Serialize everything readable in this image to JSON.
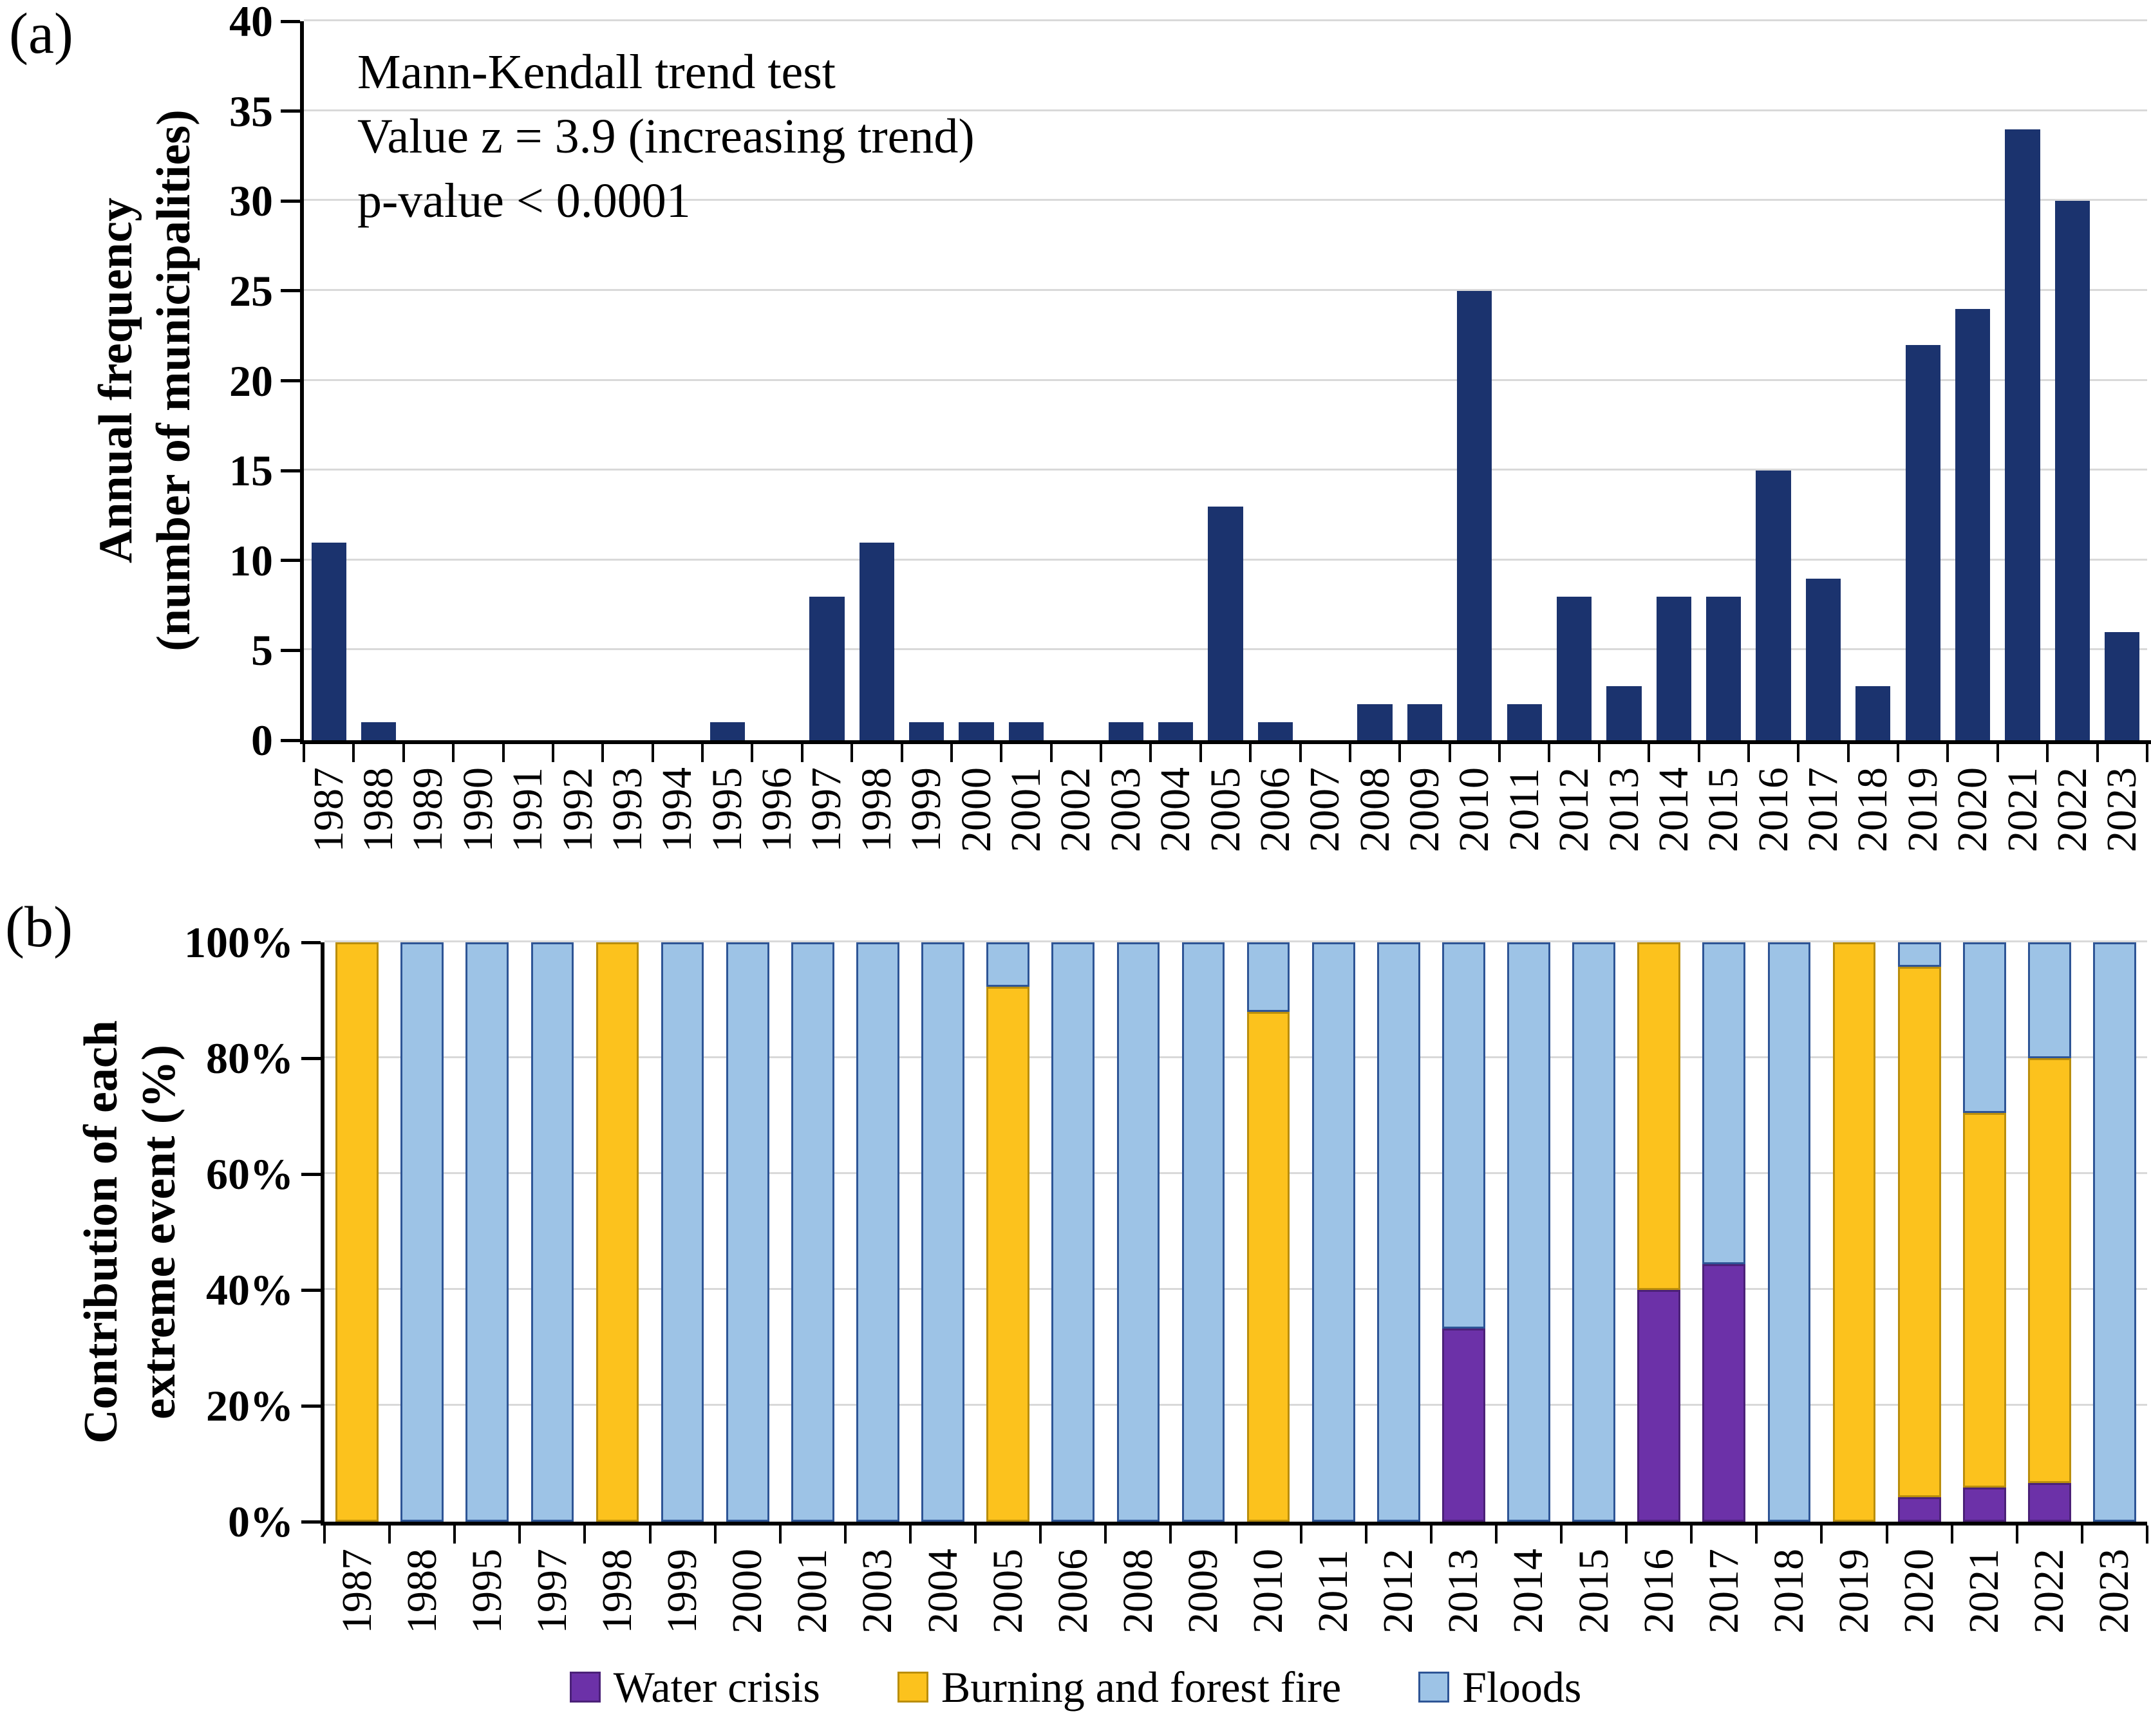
{
  "figure": {
    "panel_a_label": "(a)",
    "panel_b_label": "(b)",
    "annotation_lines": [
      "Mann-Kendall trend test",
      "Value z = 3.9 (increasing trend)",
      "p-value < 0.0001"
    ],
    "legend": [
      {
        "name": "water-crisis",
        "label": "Water crisis",
        "color": "#6C31A8",
        "border": "#4B2178"
      },
      {
        "name": "burning-and-forest-fire",
        "label": "Burning and forest fire",
        "color": "#FCC21D",
        "border": "#BA8E0C"
      },
      {
        "name": "floods",
        "label": "Floods",
        "color": "#9DC3E6",
        "border": "#2E5596"
      }
    ],
    "colors": {
      "annual_bar": "#1B336E",
      "gridline": "#D9D9D9",
      "axis": "#000000"
    }
  },
  "chart_data": [
    {
      "type": "bar",
      "panel": "a",
      "title": "",
      "xlabel": "",
      "ylabel_lines": [
        "Annual frequency",
        "(number of municipalities)"
      ],
      "ylim": [
        0,
        40
      ],
      "yticks": [
        0,
        5,
        10,
        15,
        20,
        25,
        30,
        35,
        40
      ],
      "grid": true,
      "legend_position": "none",
      "bar_color": "#1B336E",
      "annotation": "Mann-Kendall trend test; Value z = 3.9 (increasing trend); p-value < 0.0001",
      "categories": [
        "1987",
        "1988",
        "1989",
        "1990",
        "1991",
        "1992",
        "1993",
        "1994",
        "1995",
        "1996",
        "1997",
        "1998",
        "1999",
        "2000",
        "2001",
        "2002",
        "2003",
        "2004",
        "2005",
        "2006",
        "2007",
        "2008",
        "2009",
        "2010",
        "2011",
        "2012",
        "2013",
        "2014",
        "2015",
        "2016",
        "2017",
        "2018",
        "2019",
        "2020",
        "2021",
        "2022",
        "2023"
      ],
      "values": [
        11,
        1,
        0,
        0,
        0,
        0,
        0,
        0,
        1,
        0,
        8,
        11,
        1,
        1,
        1,
        0,
        1,
        1,
        13,
        1,
        0,
        2,
        2,
        25,
        2,
        8,
        3,
        8,
        8,
        15,
        9,
        3,
        22,
        24,
        34,
        30,
        6
      ]
    },
    {
      "type": "stacked-bar-percent",
      "panel": "b",
      "title": "",
      "xlabel": "",
      "ylabel_lines": [
        "Contribution of each",
        "extreme event (%)"
      ],
      "ylim": [
        0,
        100
      ],
      "yticks": [
        0,
        20,
        40,
        60,
        80,
        100
      ],
      "ytick_labels": [
        "0%",
        "20%",
        "40%",
        "60%",
        "80%",
        "100%"
      ],
      "grid": true,
      "legend_position": "bottom",
      "stack_order_bottom_to_top": [
        "Water crisis",
        "Burning and forest fire",
        "Floods"
      ],
      "categories": [
        "1987",
        "1988",
        "1995",
        "1997",
        "1998",
        "1999",
        "2000",
        "2001",
        "2003",
        "2004",
        "2005",
        "2006",
        "2008",
        "2009",
        "2010",
        "2011",
        "2012",
        "2013",
        "2014",
        "2015",
        "2016",
        "2017",
        "2018",
        "2019",
        "2020",
        "2021",
        "2022",
        "2023"
      ],
      "series": [
        {
          "name": "Water crisis",
          "color": "#6C31A8",
          "border": "#4B2178",
          "values": [
            0,
            0,
            0,
            0,
            0,
            0,
            0,
            0,
            0,
            0,
            0,
            0,
            0,
            0,
            0,
            0,
            0,
            33.3,
            0,
            0,
            40,
            44.4,
            0,
            0,
            4.2,
            5.9,
            6.7,
            0
          ]
        },
        {
          "name": "Burning and forest fire",
          "color": "#FCC21D",
          "border": "#BA8E0C",
          "values": [
            100,
            0,
            0,
            0,
            100,
            0,
            0,
            0,
            0,
            0,
            92.3,
            0,
            0,
            0,
            88,
            0,
            0,
            0,
            0,
            0,
            60,
            0,
            0,
            100,
            91.6,
            64.7,
            73.3,
            0
          ]
        },
        {
          "name": "Floods",
          "color": "#9DC3E6",
          "border": "#2E5596",
          "values": [
            0,
            100,
            100,
            100,
            0,
            100,
            100,
            100,
            100,
            100,
            7.7,
            100,
            100,
            100,
            12,
            100,
            100,
            66.7,
            100,
            100,
            0,
            55.6,
            100,
            0,
            4.2,
            29.4,
            20,
            100
          ]
        }
      ]
    }
  ]
}
